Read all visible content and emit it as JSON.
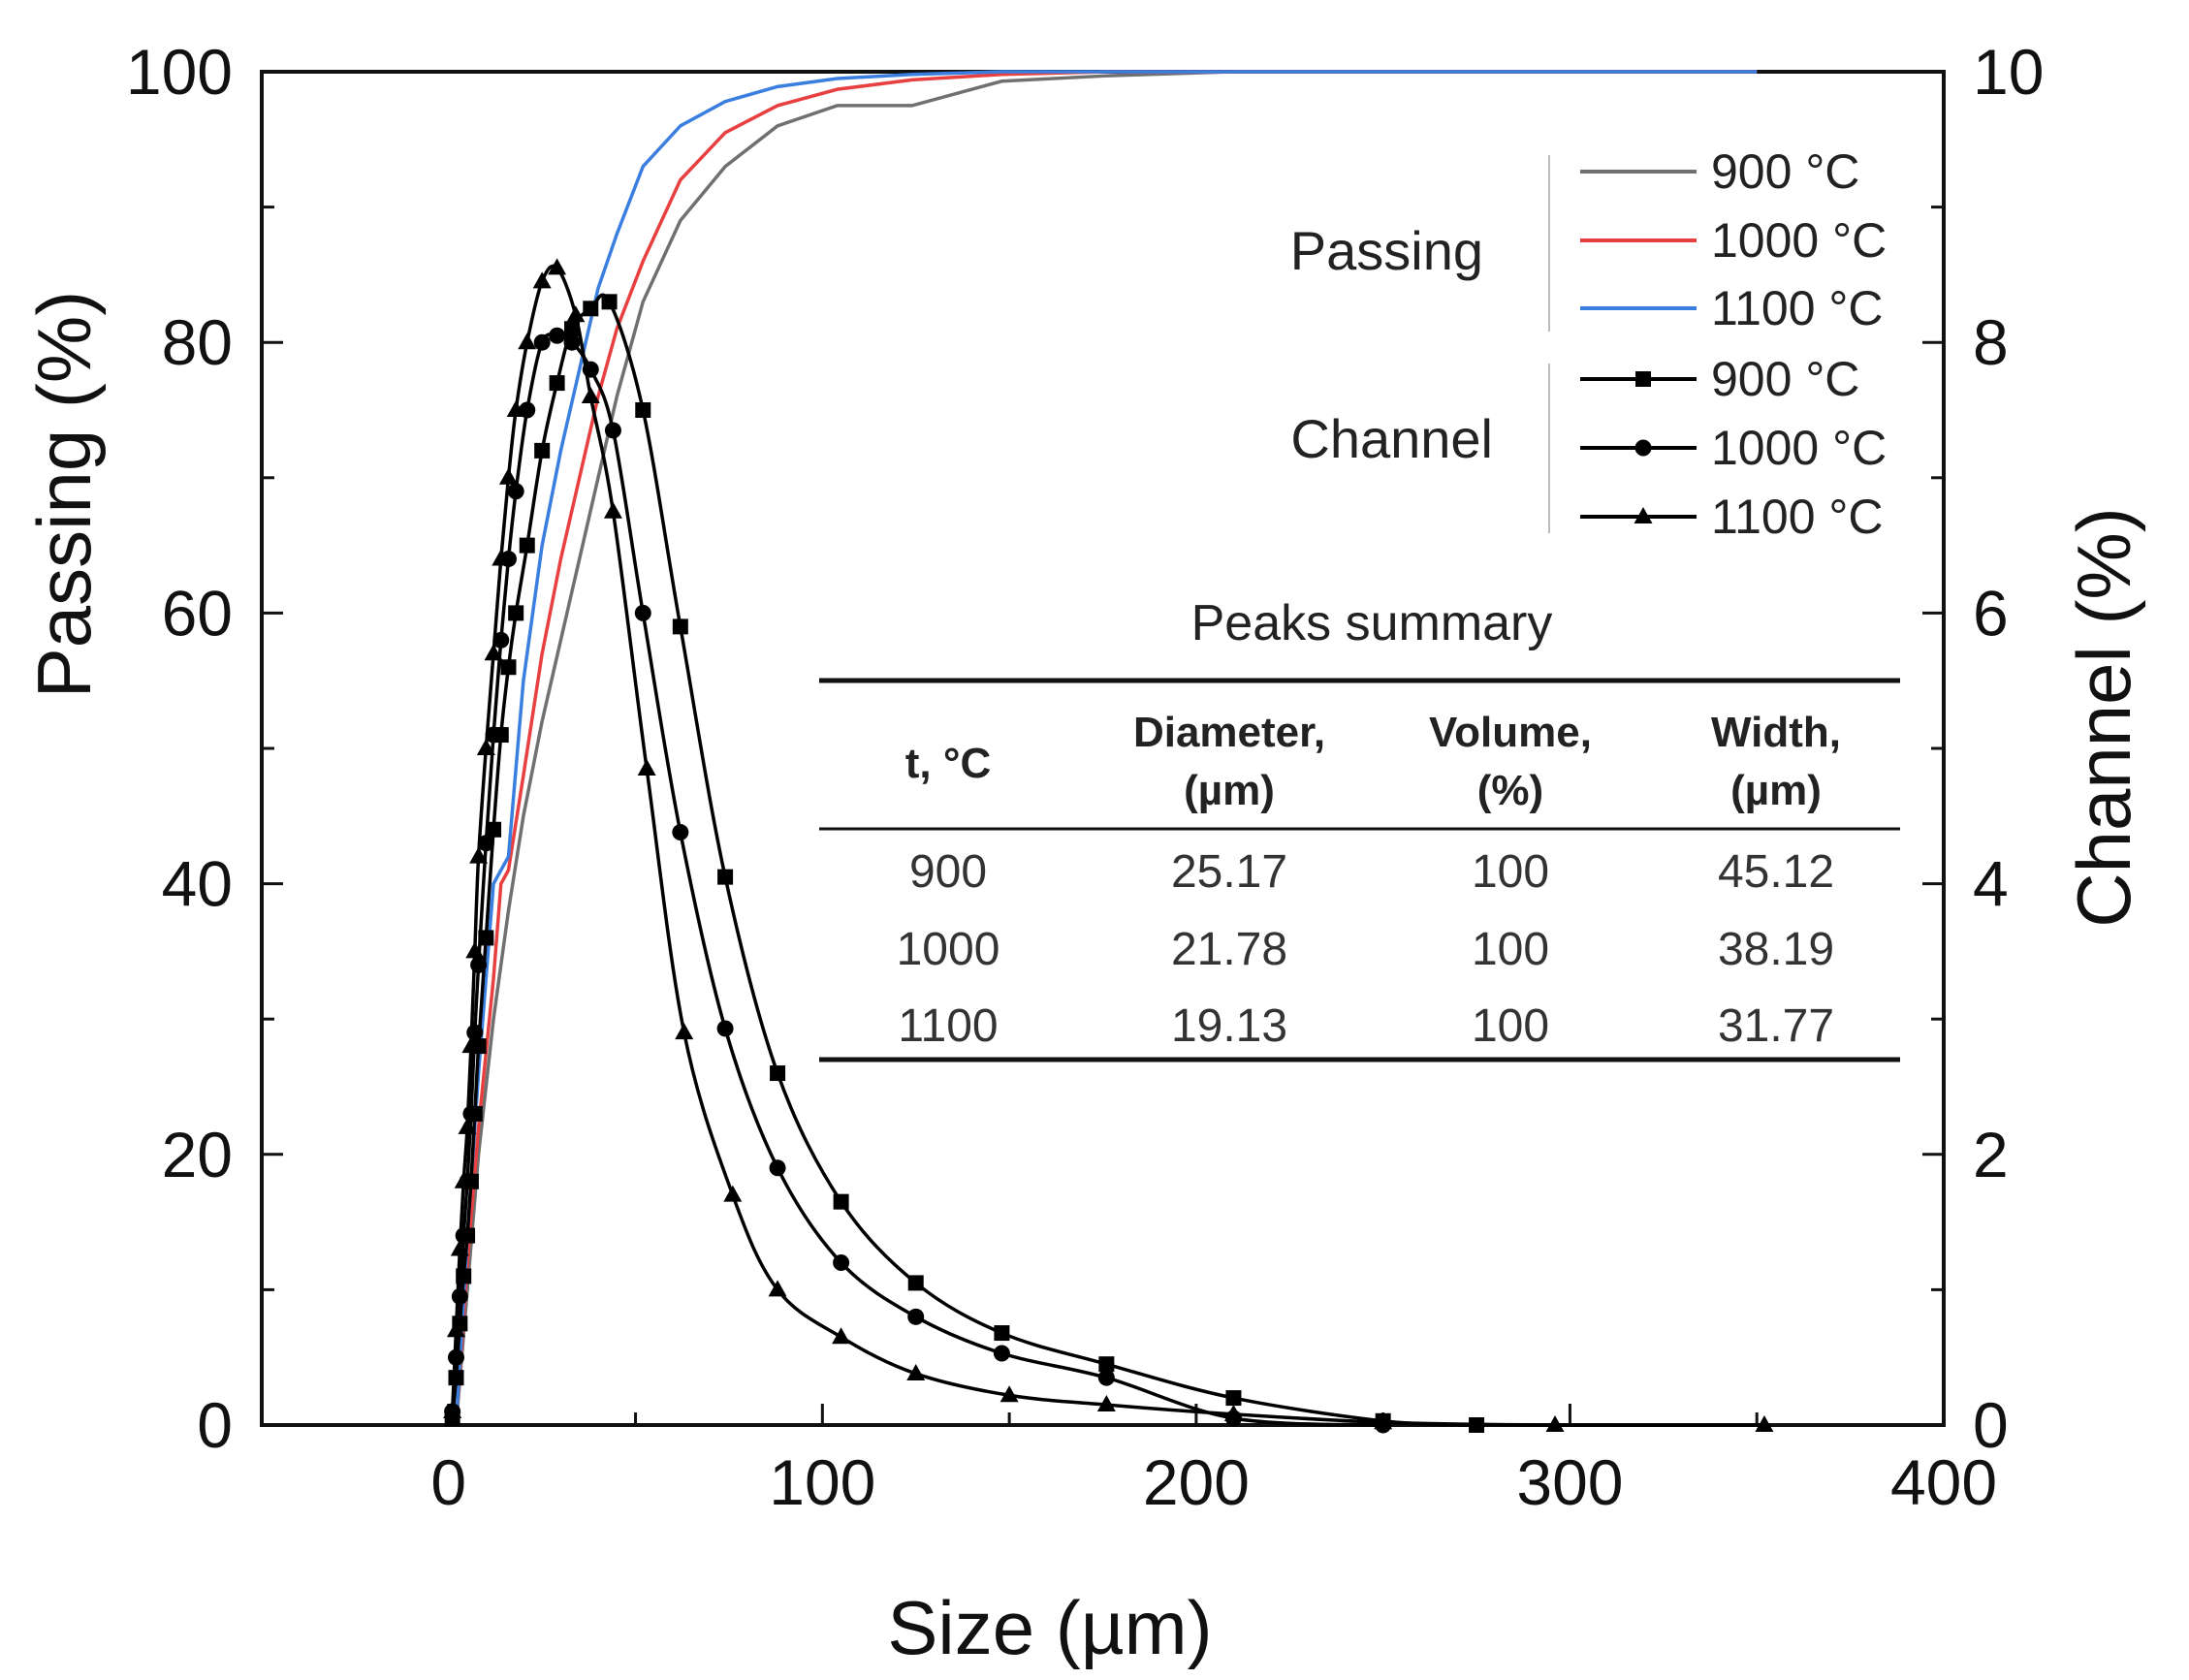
{
  "chart_data": {
    "type": "line",
    "xlabel": "Size (µm)",
    "ylabel": "Passing (%)",
    "y2label": "Channel (%)",
    "xlim": [
      -50,
      400
    ],
    "ylim": [
      0,
      100
    ],
    "y2lim": [
      0,
      10
    ],
    "x_ticks": [
      "0",
      "100",
      "200",
      "300",
      "400"
    ],
    "x_tick_values": [
      0,
      100,
      200,
      300,
      400
    ],
    "y_ticks": [
      "0",
      "20",
      "40",
      "60",
      "80",
      "100"
    ],
    "y_tick_values": [
      0,
      20,
      40,
      60,
      80,
      100
    ],
    "y2_ticks": [
      "0",
      "2",
      "4",
      "6",
      "8",
      "10"
    ],
    "y2_tick_values": [
      0,
      2,
      4,
      6,
      8,
      10
    ],
    "legend_position": "top-right",
    "legend_groups": {
      "passing": "Passing",
      "channel": "Channel"
    },
    "passing_series": [
      {
        "name": "900 °C",
        "color": "#707070",
        "x": [
          2,
          5,
          8,
          12,
          16,
          20,
          25,
          30,
          35,
          40,
          45,
          52,
          62,
          74,
          88,
          104,
          124,
          148,
          176,
          210,
          250,
          300,
          350
        ],
        "y": [
          0,
          10,
          20,
          30,
          38,
          45,
          52,
          58,
          64,
          70,
          76,
          83,
          89,
          93,
          96,
          97.5,
          97.5,
          99.3,
          99.7,
          100,
          100,
          100,
          100
        ]
      },
      {
        "name": "1000 °C",
        "color": "#e84040",
        "x": [
          2,
          5,
          8,
          12,
          14,
          16,
          20,
          25,
          30,
          35,
          40,
          45,
          52,
          62,
          74,
          88,
          104,
          124,
          148,
          176,
          210,
          250,
          300,
          350
        ],
        "y": [
          0,
          12,
          22,
          33,
          40,
          41,
          48,
          57,
          64,
          70,
          76,
          81,
          86,
          92,
          95.5,
          97.5,
          98.7,
          99.4,
          99.8,
          100,
          100,
          100,
          100,
          100
        ]
      },
      {
        "name": "1100 °C",
        "color": "#3a7fe0",
        "x": [
          2,
          5,
          8,
          12,
          14,
          16,
          20,
          25,
          30,
          35,
          40,
          45,
          52,
          62,
          74,
          88,
          104,
          124,
          148,
          176,
          210,
          250,
          300,
          350
        ],
        "y": [
          0,
          14,
          26,
          40,
          41,
          42,
          55,
          65,
          72,
          78,
          84,
          88,
          93,
          96,
          97.8,
          98.9,
          99.5,
          99.8,
          100,
          100,
          100,
          100,
          100,
          100
        ]
      }
    ],
    "channel_series": [
      {
        "name": "900 °C",
        "marker": "square",
        "color": "#000000",
        "x": [
          1,
          2,
          3,
          4,
          5,
          6,
          7,
          8,
          10,
          12,
          14,
          16,
          18,
          21,
          25,
          29,
          33,
          38,
          43,
          52,
          62,
          74,
          88,
          105,
          125,
          148,
          176,
          210,
          250,
          275
        ],
        "y": [
          0.05,
          0.35,
          0.75,
          1.1,
          1.4,
          1.8,
          2.3,
          2.8,
          3.6,
          4.4,
          5.1,
          5.6,
          6.0,
          6.5,
          7.2,
          7.7,
          8.1,
          8.25,
          8.3,
          7.5,
          5.9,
          4.05,
          2.6,
          1.65,
          1.05,
          0.68,
          0.45,
          0.2,
          0.03,
          0.0
        ]
      },
      {
        "name": "1000 °C",
        "marker": "circle",
        "color": "#000000",
        "x": [
          1,
          2,
          3,
          4,
          5,
          6,
          7,
          8,
          10,
          12,
          14,
          16,
          18,
          21,
          25,
          29,
          33,
          38,
          44,
          52,
          62,
          74,
          88,
          105,
          125,
          148,
          176,
          210,
          250
        ],
        "y": [
          0.1,
          0.5,
          0.95,
          1.4,
          1.8,
          2.3,
          2.9,
          3.4,
          4.3,
          5.1,
          5.8,
          6.4,
          6.9,
          7.5,
          8.0,
          8.05,
          8.0,
          7.8,
          7.35,
          6.0,
          4.38,
          2.93,
          1.9,
          1.2,
          0.8,
          0.53,
          0.35,
          0.05,
          0.0
        ]
      },
      {
        "name": "1100 °C",
        "marker": "triangle",
        "color": "#000000",
        "x": [
          1,
          2,
          3,
          4,
          5,
          6,
          7,
          8,
          10,
          12,
          14,
          16,
          18,
          21,
          25,
          29,
          34,
          38,
          44,
          53,
          63,
          76,
          88,
          105,
          125,
          150,
          176,
          210,
          250,
          296,
          352
        ],
        "y": [
          0.1,
          0.7,
          1.3,
          1.8,
          2.2,
          2.8,
          3.5,
          4.2,
          5.0,
          5.7,
          6.4,
          7.0,
          7.5,
          8.0,
          8.45,
          8.55,
          8.2,
          7.6,
          6.75,
          4.85,
          2.9,
          1.7,
          1.0,
          0.65,
          0.38,
          0.22,
          0.15,
          0.08,
          0.02,
          0.0,
          0.0
        ]
      }
    ],
    "peaks_summary": {
      "title": "Peaks summary",
      "columns": [
        [
          "t, °C"
        ],
        [
          "Diameter,",
          "(µm)"
        ],
        [
          "Volume,",
          "(%)"
        ],
        [
          "Width,",
          "(µm)"
        ]
      ],
      "rows": [
        [
          "900",
          "25.17",
          "100",
          "45.12"
        ],
        [
          "1000",
          "21.78",
          "100",
          "38.19"
        ],
        [
          "1100",
          "19.13",
          "100",
          "31.77"
        ]
      ]
    }
  }
}
